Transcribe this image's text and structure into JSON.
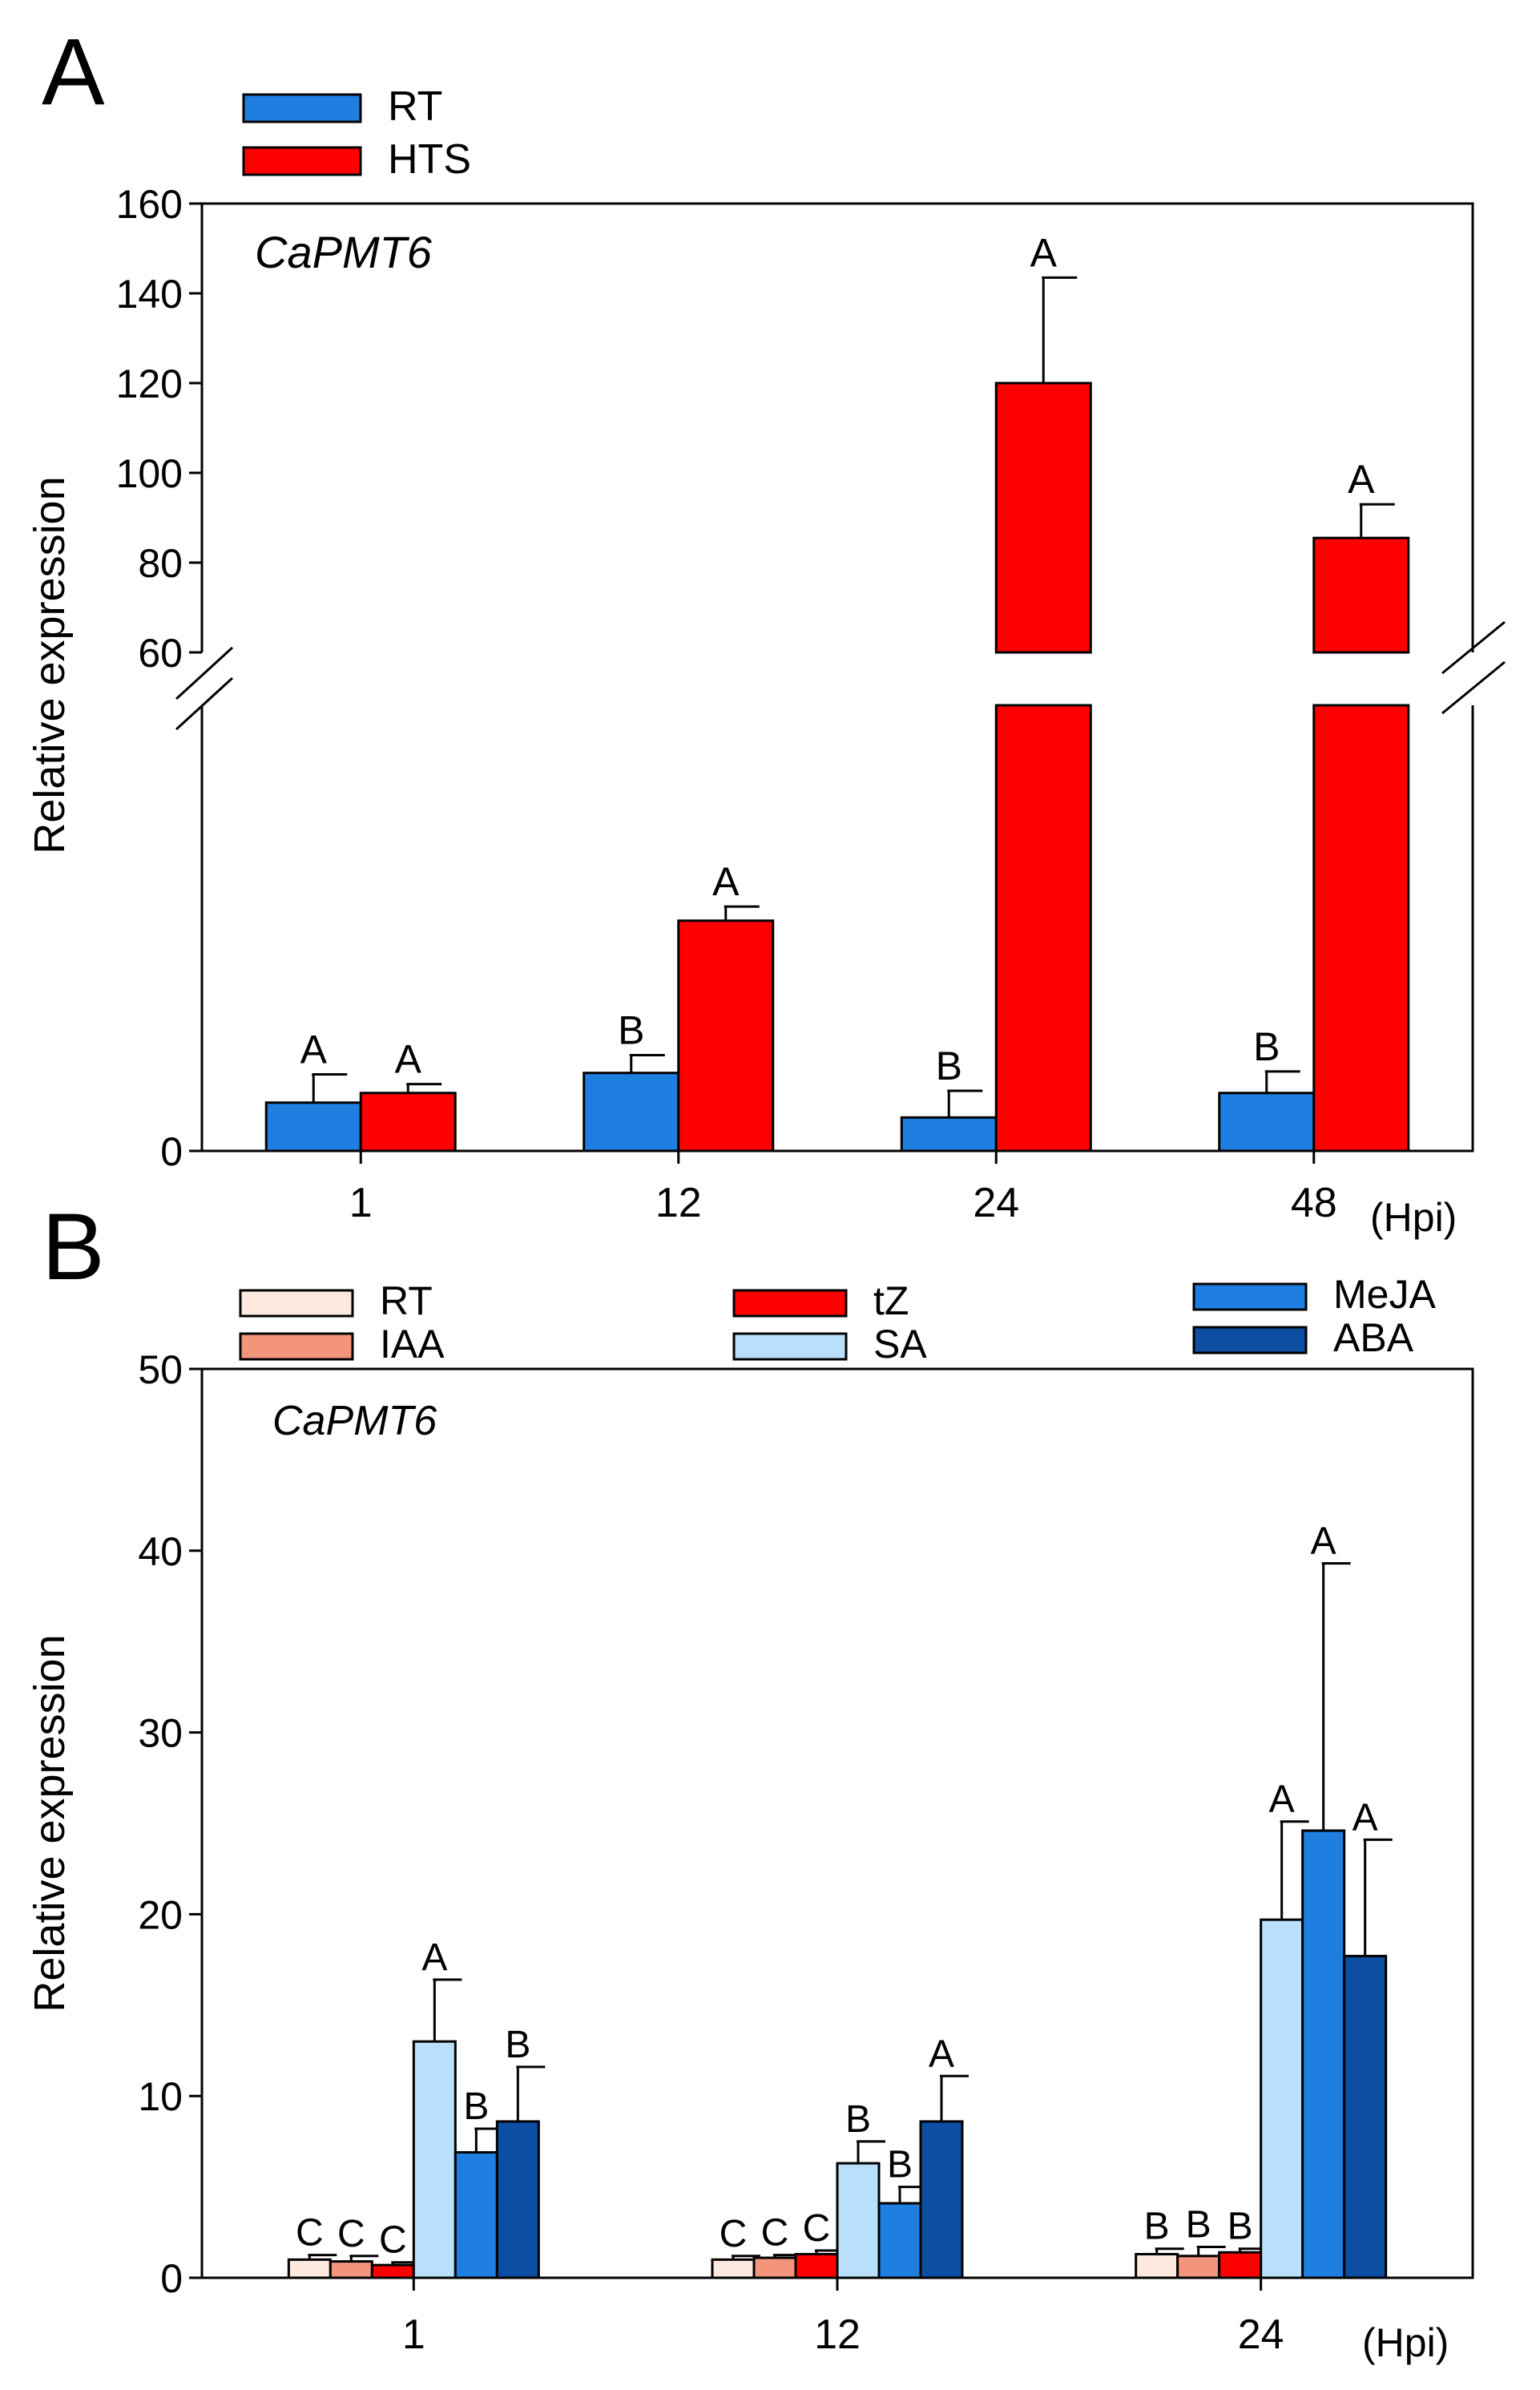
{
  "chart_data": [
    {
      "panel": "A",
      "type": "bar",
      "gene": "CaPMT6",
      "xlabel": "(Hpi)",
      "ylabel": "Relative expression",
      "categories": [
        "1",
        "12",
        "24",
        "48"
      ],
      "y_ticks_lower": [
        "0"
      ],
      "y_ticks_upper": [
        "60",
        "80",
        "100",
        "120",
        "140",
        "160"
      ],
      "axis_break": {
        "lower_range": [
          0,
          60
        ],
        "upper_range": [
          60,
          160
        ]
      },
      "series": [
        {
          "name": "RT",
          "color": "#1f7fe0",
          "values": [
            6.5,
            10.5,
            4.5,
            7.8
          ],
          "errors": [
            3.8,
            2.4,
            3.6,
            2.9
          ],
          "letters": [
            "A",
            "B",
            "B",
            "B"
          ]
        },
        {
          "name": "HTS",
          "color": "#ff0000",
          "values": [
            7.8,
            31,
            120,
            85.5
          ],
          "errors": [
            1.2,
            1.9,
            23.5,
            7.5
          ],
          "letters": [
            "A",
            "A",
            "A",
            "A"
          ]
        }
      ],
      "legend": [
        {
          "label": "RT",
          "color": "#1f7fe0"
        },
        {
          "label": "HTS",
          "color": "#ff0000"
        }
      ]
    },
    {
      "panel": "B",
      "type": "bar",
      "gene": "CaPMT6",
      "xlabel": "(Hpi)",
      "ylabel": "Relative expression",
      "categories": [
        "1",
        "12",
        "24"
      ],
      "ylim": [
        0,
        50
      ],
      "y_ticks": [
        0,
        10,
        20,
        30,
        40,
        50
      ],
      "series": [
        {
          "name": "RT",
          "color": "#fde9de",
          "values": [
            1.0,
            1.0,
            1.3
          ],
          "errors": [
            0.25,
            0.2,
            0.3
          ],
          "letters": [
            "C",
            "C",
            "B"
          ]
        },
        {
          "name": "IAA",
          "color": "#f2957a",
          "values": [
            0.9,
            1.1,
            1.2
          ],
          "errors": [
            0.3,
            0.15,
            0.5
          ],
          "letters": [
            "C",
            "C",
            "B"
          ]
        },
        {
          "name": "tZ",
          "color": "#ff0000",
          "values": [
            0.7,
            1.3,
            1.4
          ],
          "errors": [
            0.15,
            0.2,
            0.2
          ],
          "letters": [
            "C",
            "C",
            "B"
          ]
        },
        {
          "name": "SA",
          "color": "#b9e0fb",
          "values": [
            13.0,
            6.3,
            19.7
          ],
          "errors": [
            3.4,
            1.2,
            5.4
          ],
          "letters": [
            "A",
            "B",
            "A"
          ]
        },
        {
          "name": "MeJA",
          "color": "#1f7fe0",
          "values": [
            6.9,
            4.1,
            24.6
          ],
          "errors": [
            1.3,
            0.9,
            14.7
          ],
          "letters": [
            "B",
            "B",
            "A"
          ]
        },
        {
          "name": "ABA",
          "color": "#0b4ea2",
          "values": [
            8.6,
            8.6,
            17.7
          ],
          "errors": [
            3.0,
            2.5,
            6.4
          ],
          "letters": [
            "B",
            "A",
            "A"
          ]
        }
      ],
      "legend": [
        {
          "label": "RT",
          "color": "#fde9de"
        },
        {
          "label": "IAA",
          "color": "#f2957a"
        },
        {
          "label": "tZ",
          "color": "#ff0000"
        },
        {
          "label": "SA",
          "color": "#b9e0fb"
        },
        {
          "label": "MeJA",
          "color": "#1f7fe0"
        },
        {
          "label": "ABA",
          "color": "#0b4ea2"
        }
      ]
    }
  ],
  "panels": {
    "a_label": "A",
    "b_label": "B"
  }
}
